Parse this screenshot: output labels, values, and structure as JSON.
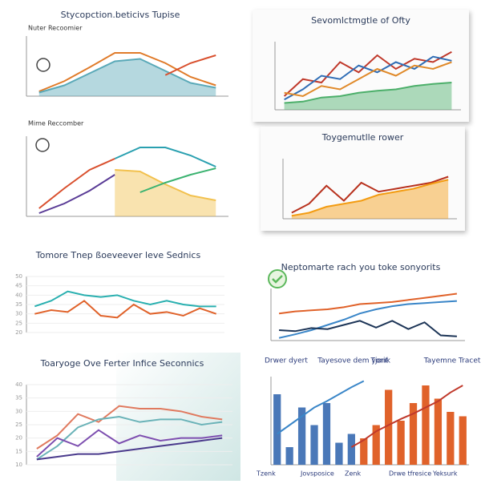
{
  "chart_data": [
    {
      "type": "line",
      "title": "Stycopction.beticivs Tupise",
      "subtitle": "Nuter Recoomier",
      "categories": [
        null,
        null,
        null,
        null,
        null,
        null,
        null,
        null
      ],
      "ylim": [
        0,
        100
      ],
      "series": [
        {
          "color": "#e07b2a",
          "values": [
            8,
            25,
            48,
            72,
            72,
            55,
            32,
            18
          ]
        },
        {
          "color": "#5aa9b8",
          "area": true,
          "values": [
            6,
            18,
            38,
            58,
            62,
            42,
            22,
            14
          ]
        },
        {
          "color": "#d9502e",
          "values": [
            null,
            null,
            null,
            null,
            null,
            35,
            55,
            68
          ]
        }
      ]
    },
    {
      "type": "line",
      "subtitle": "Mime Reccomber",
      "categories": [
        null,
        null,
        null,
        null,
        null,
        null,
        null,
        null
      ],
      "ylim": [
        0,
        100
      ],
      "series": [
        {
          "color": "#d9502e",
          "values": [
            10,
            35,
            58,
            72,
            null,
            null,
            null,
            null
          ]
        },
        {
          "color": "#2aa0b0",
          "values": [
            null,
            null,
            null,
            72,
            86,
            86,
            76,
            62
          ]
        },
        {
          "color": "#5a3c96",
          "values": [
            4,
            16,
            32,
            52,
            null,
            null,
            null,
            null
          ]
        },
        {
          "color": "#f2c14e",
          "area": true,
          "values": [
            null,
            null,
            null,
            58,
            56,
            40,
            26,
            20
          ]
        },
        {
          "color": "#3cb371",
          "values": [
            null,
            null,
            null,
            null,
            30,
            42,
            52,
            60
          ]
        }
      ]
    },
    {
      "type": "line",
      "title": "Sevomlctmgtle of Ofty",
      "categories": [
        null,
        null,
        null,
        null,
        null,
        null,
        null,
        null,
        null,
        null
      ],
      "ylim": [
        0,
        100
      ],
      "series": [
        {
          "color": "#c0392b",
          "values": [
            20,
            45,
            40,
            70,
            55,
            80,
            60,
            75,
            70,
            85
          ]
        },
        {
          "color": "#2f6db5",
          "values": [
            15,
            30,
            50,
            45,
            65,
            55,
            70,
            60,
            78,
            72
          ]
        },
        {
          "color": "#e08a2a",
          "values": [
            25,
            20,
            35,
            30,
            45,
            60,
            50,
            65,
            60,
            70
          ]
        },
        {
          "color": "#4caf6a",
          "area": true,
          "values": [
            10,
            12,
            18,
            20,
            25,
            28,
            30,
            35,
            38,
            40
          ]
        }
      ]
    },
    {
      "type": "line",
      "title": "Toygemutlle rower",
      "categories": [
        null,
        null,
        null,
        null,
        null,
        null,
        null,
        null,
        null,
        null
      ],
      "ylim": [
        0,
        100
      ],
      "series": [
        {
          "color": "#b8321e",
          "values": [
            10,
            25,
            55,
            30,
            60,
            45,
            50,
            55,
            60,
            70
          ]
        },
        {
          "color": "#f39c12",
          "area": true,
          "values": [
            5,
            10,
            20,
            25,
            30,
            40,
            45,
            50,
            58,
            65
          ]
        }
      ]
    },
    {
      "type": "line",
      "title": "Tomore Tnep ßoeveever leve Sednics",
      "categories": [
        null,
        null,
        null,
        null,
        null,
        null,
        null,
        null,
        null,
        null,
        null,
        null
      ],
      "ylim": [
        20,
        50
      ],
      "yticks": [
        20,
        25,
        30,
        35,
        40,
        45,
        50
      ],
      "series": [
        {
          "color": "#2ab0b0",
          "values": [
            34,
            37,
            42,
            40,
            39,
            40,
            37,
            35,
            37,
            35,
            34,
            34
          ]
        },
        {
          "color": "#e0622a",
          "values": [
            30,
            32,
            31,
            37,
            29,
            28,
            35,
            30,
            31,
            29,
            33,
            30
          ]
        }
      ]
    },
    {
      "type": "line",
      "title": "Toaryoge Ove Ferter Infice Seconnics",
      "categories": [
        null,
        null,
        null,
        null,
        null,
        null,
        null,
        null,
        null,
        null
      ],
      "ylim": [
        10,
        40
      ],
      "yticks": [
        10,
        15,
        20,
        25,
        30,
        35,
        40
      ],
      "series": [
        {
          "color": "#e07a5f",
          "values": [
            16,
            21,
            29,
            26,
            32,
            31,
            31,
            30,
            28,
            27
          ]
        },
        {
          "color": "#6bb3b8",
          "values": [
            12,
            17,
            24,
            27,
            28,
            26,
            27,
            27,
            25,
            26
          ]
        },
        {
          "color": "#7d4fb0",
          "values": [
            13,
            20,
            17,
            23,
            18,
            21,
            19,
            20,
            20,
            21
          ]
        },
        {
          "color": "#4a3a8c",
          "values": [
            12,
            13,
            14,
            14,
            15,
            16,
            17,
            18,
            19,
            20
          ]
        }
      ]
    },
    {
      "type": "line",
      "title": "Neptomarte rach you toke sonyorits",
      "categories": [
        null,
        null,
        null,
        null,
        null,
        null,
        null,
        null,
        null,
        null,
        null,
        null
      ],
      "ylim": [
        0,
        100
      ],
      "series": [
        {
          "color": "#e0622a",
          "values": [
            52,
            56,
            58,
            60,
            64,
            70,
            72,
            74,
            78,
            82,
            86,
            90
          ]
        },
        {
          "color": "#3a86c8",
          "values": [
            5,
            12,
            20,
            30,
            40,
            52,
            60,
            66,
            70,
            72,
            74,
            76
          ]
        },
        {
          "color": "#1d3557",
          "values": [
            20,
            18,
            24,
            22,
            30,
            38,
            25,
            38,
            22,
            35,
            10,
            8
          ]
        }
      ]
    },
    {
      "type": "bar",
      "top_labels": [
        "Drwer dyert",
        "Tayesove dem yorit",
        "Tjonk",
        "Tayemne Tracet"
      ],
      "bottom_labels": [
        "Tzenk",
        "Jovsposice",
        "Zenk",
        "Drwe tfresice",
        "Yeksurk"
      ],
      "categories": [
        null,
        null,
        null,
        null,
        null,
        null,
        null,
        null,
        null,
        null,
        null,
        null,
        null,
        null,
        null,
        null
      ],
      "ylim": [
        0,
        100
      ],
      "series": [
        {
          "color": "#4a78b8",
          "values": [
            80,
            20,
            65,
            45,
            70,
            25,
            35,
            null,
            null,
            null,
            null,
            null,
            null,
            null,
            null,
            null
          ]
        },
        {
          "color": "#e0622a",
          "values": [
            null,
            null,
            null,
            null,
            null,
            null,
            null,
            30,
            45,
            85,
            50,
            70,
            90,
            75,
            60,
            55
          ]
        },
        {
          "line": true,
          "color": "#3a86c8",
          "values": [
            35,
            45,
            55,
            65,
            72,
            80,
            88,
            95,
            null,
            null,
            null,
            null,
            null,
            null,
            null,
            null
          ]
        },
        {
          "line": true,
          "color": "#c0392b",
          "values": [
            null,
            null,
            null,
            null,
            null,
            null,
            20,
            28,
            38,
            45,
            52,
            58,
            65,
            72,
            82,
            90
          ]
        }
      ]
    }
  ]
}
